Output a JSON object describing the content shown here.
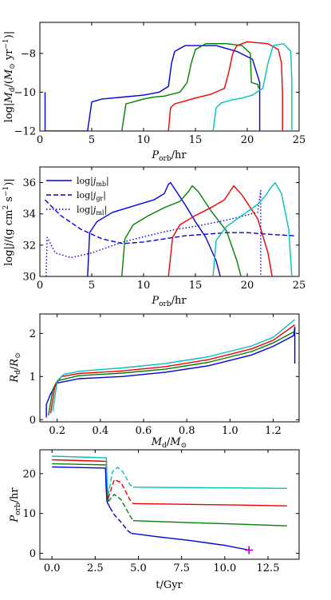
{
  "colors": {
    "blue": "#0000dd",
    "green": "#008000",
    "red": "#ee0000",
    "cyan": "#00c0c0",
    "marker": "#aa00cc"
  },
  "chart_data": [
    {
      "type": "line",
      "xlabel": "P_orb/hr",
      "ylabel": "log|M_d/(M_⊙ yr⁻¹)|",
      "xlim": [
        0,
        25
      ],
      "ylim": [
        -12,
        -6.4
      ],
      "xticks": [
        "0",
        "5",
        "10",
        "15",
        "20",
        "25"
      ],
      "yticks": [
        "−12",
        "−10",
        "−8"
      ],
      "series": [
        {
          "color": "blue",
          "x": [
            0.5,
            0.5,
            0.6,
            4.6,
            5.0,
            6,
            8,
            10,
            11.5,
            12.4,
            12.7,
            13,
            14,
            15,
            17,
            19,
            20.5,
            21.2,
            21.2
          ],
          "y": [
            -10.0,
            -12,
            -12,
            -12,
            -10.5,
            -10.35,
            -10.25,
            -10.15,
            -10.0,
            -9.7,
            -8.5,
            -7.9,
            -7.6,
            -7.6,
            -7.6,
            -7.9,
            -8.3,
            -9.5,
            -12
          ]
        },
        {
          "color": "green",
          "x": [
            7.9,
            8.3,
            9,
            10,
            11,
            12,
            13.5,
            14.2,
            14.6,
            15,
            16,
            18,
            19.5,
            20.3,
            20.4,
            21,
            21.1
          ],
          "y": [
            -12,
            -10.6,
            -10.5,
            -10.35,
            -10.25,
            -10.2,
            -10.0,
            -9.5,
            -8.5,
            -7.8,
            -7.5,
            -7.5,
            -7.6,
            -8.0,
            -9.5,
            -9.6,
            -9.8
          ]
        },
        {
          "color": "red",
          "x": [
            12.4,
            12.6,
            13,
            14,
            15,
            16.5,
            17.8,
            18.2,
            18.6,
            19,
            20,
            22,
            23,
            23.3,
            23.4,
            23.4
          ],
          "y": [
            -12,
            -10.8,
            -10.6,
            -10.45,
            -10.3,
            -10.1,
            -9.8,
            -9.0,
            -8.0,
            -7.6,
            -7.4,
            -7.5,
            -7.8,
            -8.5,
            -10,
            -12
          ]
        },
        {
          "color": "cyan",
          "x": [
            16.7,
            17,
            17.5,
            18.5,
            19.5,
            20.5,
            21.5,
            22,
            22.5,
            23.5,
            24.2,
            24.3,
            24.3
          ],
          "y": [
            -12,
            -10.8,
            -10.55,
            -10.4,
            -10.3,
            -10.15,
            -9.8,
            -8.5,
            -7.6,
            -7.5,
            -7.9,
            -9.5,
            -12
          ]
        }
      ]
    },
    {
      "type": "line",
      "xlabel": "P_orb/hr",
      "ylabel": "log|j/(g cm² s⁻¹)|",
      "xlim": [
        0,
        25
      ],
      "ylim": [
        30,
        37
      ],
      "xticks": [
        "0",
        "5",
        "10",
        "15",
        "20",
        "25"
      ],
      "yticks": [
        "30",
        "32",
        "34",
        "36"
      ],
      "legend": [
        "log|j_mb|",
        "log|j_gr|",
        "log|j_ml|"
      ],
      "series": [
        {
          "color": "blue",
          "style": "solid",
          "x": [
            4.6,
            4.8,
            5.5,
            7,
            9,
            11,
            12,
            12.4,
            12.6,
            13,
            14,
            15,
            16,
            17,
            17.4
          ],
          "y": [
            30,
            32.8,
            33.5,
            34.1,
            34.5,
            34.9,
            35.3,
            35.9,
            36.0,
            35.6,
            34.6,
            33.5,
            32.5,
            31.0,
            30
          ]
        },
        {
          "color": "blue",
          "style": "dashed",
          "x": [
            0.5,
            2,
            4,
            6,
            8,
            10,
            12,
            14,
            16,
            18,
            20,
            22,
            24.6
          ],
          "y": [
            34.9,
            33.9,
            33.0,
            32.4,
            32.1,
            32.2,
            32.4,
            32.6,
            32.7,
            32.8,
            32.8,
            32.7,
            32.6
          ]
        },
        {
          "color": "blue",
          "style": "dotted",
          "x": [
            0.6,
            0.7,
            1.5,
            3,
            5,
            8,
            11,
            13,
            15,
            18,
            21,
            21.3,
            21.3
          ],
          "y": [
            30,
            32.5,
            31.5,
            31.2,
            31.5,
            32.2,
            32.7,
            33.0,
            33.2,
            33.6,
            34.1,
            35.5,
            30
          ]
        },
        {
          "color": "green",
          "style": "solid",
          "x": [
            7.9,
            8.2,
            9,
            10.5,
            12,
            13.5,
            14.3,
            14.7,
            15.3,
            16.5,
            18,
            19,
            19.4
          ],
          "y": [
            30,
            32.4,
            33.3,
            33.9,
            34.4,
            34.8,
            35.4,
            35.8,
            35.4,
            34.2,
            32.9,
            31.0,
            30
          ]
        },
        {
          "color": "red",
          "style": "solid",
          "x": [
            12.4,
            12.8,
            13.5,
            15,
            16.5,
            17.8,
            18.3,
            18.7,
            19.5,
            21,
            22,
            22.4
          ],
          "y": [
            30,
            32.5,
            33.3,
            33.9,
            34.4,
            34.9,
            35.4,
            35.8,
            35.2,
            33.7,
            31.5,
            30
          ]
        },
        {
          "color": "cyan",
          "style": "solid",
          "x": [
            16.7,
            17,
            18,
            19.5,
            21,
            21.8,
            22.3,
            22.7,
            23.3,
            24,
            24.3
          ],
          "y": [
            30,
            32.3,
            33.2,
            33.9,
            34.6,
            35.2,
            35.7,
            36.0,
            35.3,
            33.0,
            30
          ]
        }
      ]
    },
    {
      "type": "line",
      "xlabel": "M_d/M_⊙",
      "ylabel": "R_d/R_⊙",
      "xlim": [
        0.12,
        1.32
      ],
      "ylim": [
        -0.05,
        2.45
      ],
      "xticks": [
        "0.2",
        "0.4",
        "0.6",
        "0.8",
        "1.0",
        "1.2"
      ],
      "yticks": [
        "0",
        "1",
        "2"
      ],
      "series": [
        {
          "color": "blue",
          "x": [
            0.15,
            0.15,
            0.17,
            0.2,
            0.3,
            0.5,
            0.7,
            0.9,
            1.1,
            1.2,
            1.295,
            1.3,
            1.3
          ],
          "y": [
            0.05,
            0.35,
            0.6,
            0.85,
            0.95,
            1.0,
            1.1,
            1.25,
            1.5,
            1.7,
            1.95,
            2.15,
            1.3
          ]
        },
        {
          "color": "green",
          "x": [
            0.16,
            0.18,
            0.2,
            0.3,
            0.5,
            0.7,
            0.9,
            1.1,
            1.2,
            1.3
          ],
          "y": [
            0.1,
            0.7,
            0.9,
            1.02,
            1.08,
            1.17,
            1.33,
            1.58,
            1.78,
            2.05
          ]
        },
        {
          "color": "red",
          "x": [
            0.17,
            0.19,
            0.22,
            0.3,
            0.5,
            0.7,
            0.9,
            1.1,
            1.2,
            1.3
          ],
          "y": [
            0.15,
            0.8,
            1.0,
            1.07,
            1.13,
            1.23,
            1.39,
            1.64,
            1.84,
            2.2
          ]
        },
        {
          "color": "cyan",
          "x": [
            0.18,
            0.2,
            0.23,
            0.3,
            0.5,
            0.7,
            0.9,
            1.1,
            1.2,
            1.3
          ],
          "y": [
            0.2,
            0.9,
            1.05,
            1.12,
            1.2,
            1.3,
            1.46,
            1.71,
            1.91,
            2.32
          ]
        }
      ]
    },
    {
      "type": "line",
      "xlabel": "t/Gyr",
      "ylabel": "P_orb/hr",
      "xlim": [
        -0.7,
        14.3
      ],
      "ylim": [
        -1.5,
        26
      ],
      "xticks": [
        "0.0",
        "2.5",
        "5.0",
        "7.5",
        "10.0",
        "12.5"
      ],
      "yticks": [
        "0",
        "10",
        "20"
      ],
      "marker": {
        "x": 11.4,
        "y": 0.8,
        "color": "marker"
      },
      "series": [
        {
          "color": "blue",
          "x": [
            0,
            3.1,
            3.12,
            3.18,
            3.35
          ],
          "y": [
            21.7,
            21.4,
            17.5,
            13,
            11.5
          ],
          "dashed": {
            "x": [
              3.35,
              3.6,
              4.0,
              4.4,
              4.6
            ],
            "y": [
              11.5,
              9.7,
              7.8,
              5.6,
              5.0
            ]
          },
          "tail": {
            "x": [
              4.6,
              6,
              8,
              10,
              11.4
            ],
            "y": [
              5.0,
              4.2,
              3.2,
              2.0,
              0.8
            ]
          }
        },
        {
          "color": "green",
          "x": [
            0,
            3.15,
            3.17,
            3.25
          ],
          "y": [
            22.5,
            22.2,
            17.5,
            13
          ],
          "dashed": {
            "x": [
              3.25,
              3.6,
              4.0,
              4.5,
              4.7
            ],
            "y": [
              13,
              14.8,
              13.5,
              9.5,
              8.2
            ]
          },
          "tail": {
            "x": [
              4.7,
              8,
              11,
              13.6
            ],
            "y": [
              8.2,
              7.7,
              7.3,
              6.9
            ]
          }
        },
        {
          "color": "red",
          "x": [
            0,
            3.15,
            3.18,
            3.25
          ],
          "y": [
            23.5,
            23.1,
            18,
            13.8
          ],
          "dashed": {
            "x": [
              3.25,
              3.6,
              4.0,
              4.5,
              4.7
            ],
            "y": [
              13.8,
              18.5,
              17.8,
              13.5,
              12.5
            ]
          },
          "tail": {
            "x": [
              4.7,
              8,
              11,
              13.6
            ],
            "y": [
              12.5,
              12.3,
              12.1,
              11.9
            ]
          }
        },
        {
          "color": "cyan",
          "x": [
            0,
            3.15,
            3.18,
            3.25
          ],
          "y": [
            24.4,
            24.0,
            19,
            14.5
          ],
          "dashed": {
            "x": [
              3.25,
              3.5,
              3.8,
              4.1,
              4.5,
              4.7
            ],
            "y": [
              14.5,
              20.5,
              21.6,
              20.5,
              17.3,
              16.6
            ]
          },
          "tail": {
            "x": [
              4.7,
              8,
              11,
              13.6
            ],
            "y": [
              16.6,
              16.5,
              16.4,
              16.3
            ]
          }
        }
      ]
    }
  ]
}
